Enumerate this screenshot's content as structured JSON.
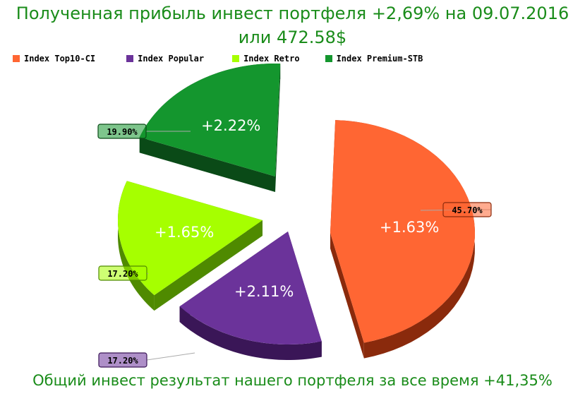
{
  "title_line1": "Полученная прибыль инвест портфеля +2,69% на 09.07.2016",
  "title_line2": "или 472.58$",
  "footer": "Общий инвест результат нашего портфеля за все время +41,35%",
  "chart_data": {
    "type": "pie",
    "title": "Полученная прибыль инвест портфеля +2,69% на 09.07.2016 или 472.58$",
    "series": [
      {
        "name": "Index Top10-CI",
        "share": 45.7,
        "share_label": "45.70%",
        "profit_label": "+1.63%",
        "color": "#ff6633",
        "dark": "#8a2a0c"
      },
      {
        "name": "Index Popular",
        "share": 17.2,
        "share_label": "17.20%",
        "profit_label": "+2.11%",
        "color": "#6b339a",
        "dark": "#3a1657"
      },
      {
        "name": "Index Retro",
        "share": 17.2,
        "share_label": "17.20%",
        "profit_label": "+1.65%",
        "color": "#a6ff00",
        "dark": "#4f8a00"
      },
      {
        "name": "Index Premium-STB",
        "share": 19.9,
        "share_label": "19.90%",
        "profit_label": "+2.22%",
        "color": "#14962e",
        "dark": "#0a4a17"
      }
    ],
    "legend_position": "top"
  }
}
